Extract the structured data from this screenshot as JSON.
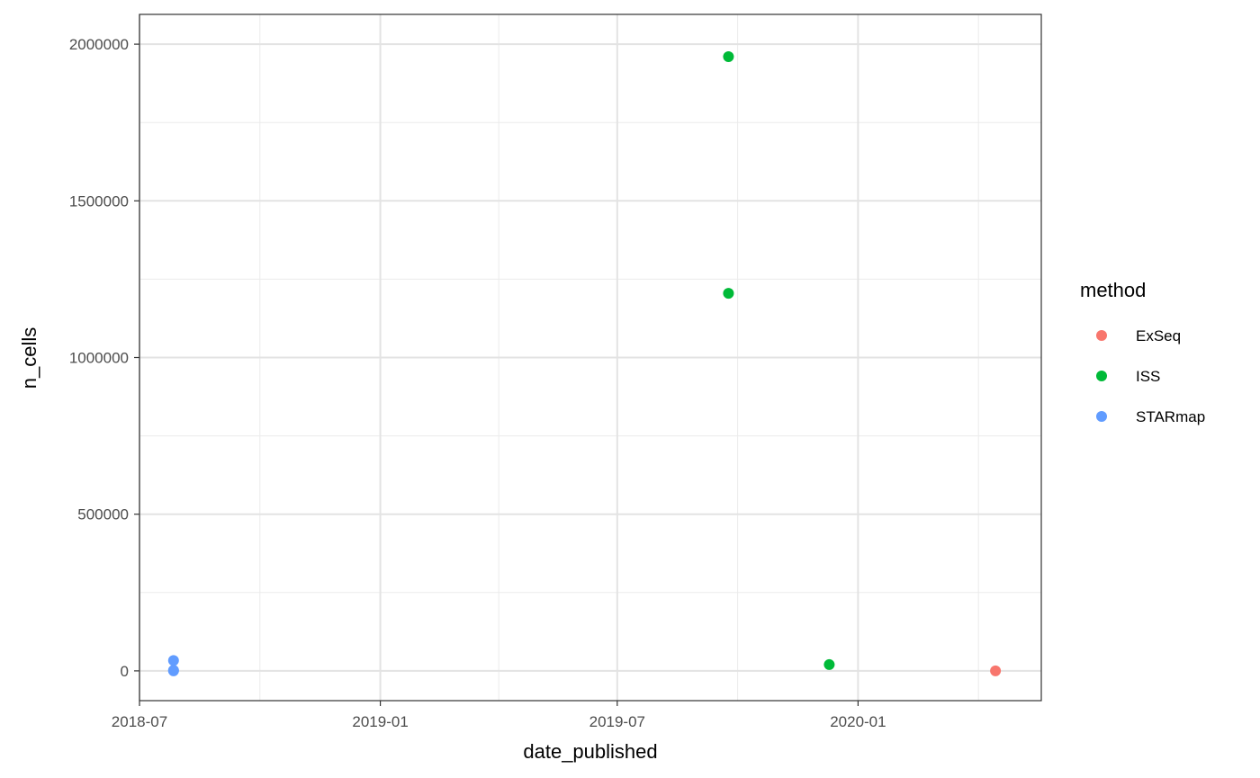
{
  "chart_data": {
    "type": "scatter",
    "title": "",
    "xlabel": "date_published",
    "ylabel": "n_cells",
    "x_type": "date",
    "xlim": [
      "2018-07-01",
      "2020-05-20"
    ],
    "ylim": [
      -95000,
      2095000
    ],
    "x_ticks": [
      "2018-07-01",
      "2019-01-01",
      "2019-07-01",
      "2020-01-01"
    ],
    "x_tick_labels": [
      "2018-07",
      "2019-01",
      "2019-07",
      "2020-01"
    ],
    "y_ticks": [
      0,
      500000,
      1000000,
      1500000,
      2000000
    ],
    "y_tick_labels": [
      "0",
      "500000",
      "1000000",
      "1500000",
      "2000000"
    ],
    "grid": true,
    "legend": {
      "title": "method",
      "position": "right"
    },
    "series": [
      {
        "name": "ExSeq",
        "color": "#F8766D",
        "points": [
          {
            "x": "2020-04-15",
            "y": 0
          }
        ]
      },
      {
        "name": "ISS",
        "color": "#00BA38",
        "points": [
          {
            "x": "2019-09-24",
            "y": 1960000
          },
          {
            "x": "2019-09-24",
            "y": 1205000
          },
          {
            "x": "2019-12-10",
            "y": 20000
          }
        ]
      },
      {
        "name": "STARmap",
        "color": "#619CFF",
        "points": [
          {
            "x": "2018-07-27",
            "y": 33000
          },
          {
            "x": "2018-07-27",
            "y": 2000
          },
          {
            "x": "2018-07-27",
            "y": 0
          }
        ]
      }
    ]
  }
}
